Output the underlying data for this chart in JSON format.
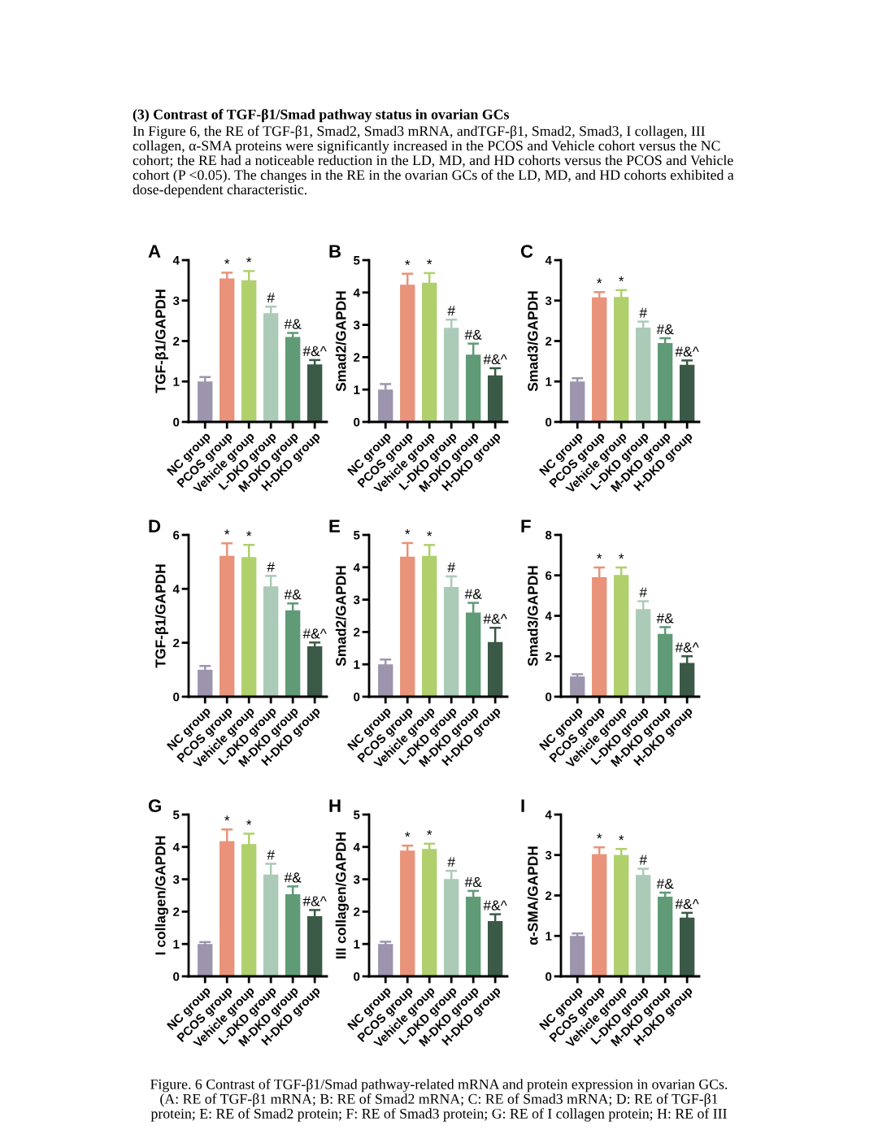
{
  "chart_data": [
    {
      "type": "other",
      "title": "(3) Contrast of TGF-β1/Smad pathway status in ovarian GCs",
      "annotations": [
        "In Figure 6, the RE of TGF-β1, Smad2, Smad3 mRNA, andTGF-β1, Smad2, Smad3, I collagen, III collagen, α-SMA proteins were significantly increased in the PCOS and Vehicle cohort versus the NC cohort; the RE had a noticeable reduction in the LD, MD, and HD cohorts versus the PCOS and Vehicle cohort (P <0.05). The changes in the RE in the ovarian GCs of the LD, MD, and HD cohorts exhibited a dose-dependent characteristic."
      ]
    },
    {
      "type": "bar",
      "title": "A",
      "ylabel": "TGF-β1/GAPDH",
      "categories": [
        "NC group",
        "PCOS group",
        "Vehicle group",
        "L-DKD group",
        "M-DKD group",
        "H-DKD group"
      ],
      "values": [
        1.0,
        3.55,
        3.5,
        2.69,
        2.1,
        1.42
      ],
      "errors": [
        0.11,
        0.14,
        0.23,
        0.16,
        0.1,
        0.11
      ],
      "colors": [
        "#9d95ad",
        "#e8937a",
        "#afd06c",
        "#abcbb8",
        "#5f9b77",
        "#3a5a47"
      ],
      "ylim": [
        0,
        4
      ],
      "yticks": [
        0,
        1,
        2,
        3,
        4
      ],
      "annotations": [
        {
          "text": "*",
          "x": "PCOS group",
          "y": 3.69
        },
        {
          "text": "*",
          "x": "Vehicle group",
          "y": 3.73
        },
        {
          "text": "#",
          "x": "L-DKD group",
          "y": 2.85
        },
        {
          "text": "#&",
          "x": "M-DKD group",
          "y": 2.2
        },
        {
          "text": "#&^",
          "x": "H-DKD group",
          "y": 1.53
        }
      ]
    },
    {
      "type": "bar",
      "title": "B",
      "ylabel": "Smad2/GAPDH",
      "categories": [
        "NC group",
        "PCOS group",
        "Vehicle group",
        "L-DKD group",
        "M-DKD group",
        "H-DKD group"
      ],
      "values": [
        1.0,
        4.24,
        4.3,
        2.91,
        2.08,
        1.44
      ],
      "errors": [
        0.17,
        0.34,
        0.3,
        0.25,
        0.34,
        0.22
      ],
      "colors": [
        "#9d95ad",
        "#e8937a",
        "#afd06c",
        "#abcbb8",
        "#5f9b77",
        "#3a5a47"
      ],
      "ylim": [
        0,
        5
      ],
      "yticks": [
        0,
        1,
        2,
        3,
        4,
        5
      ],
      "annotations": [
        {
          "text": "*",
          "x": "PCOS group",
          "y": 4.58
        },
        {
          "text": "*",
          "x": "Vehicle group",
          "y": 4.6
        },
        {
          "text": "#",
          "x": "L-DKD group",
          "y": 3.16
        },
        {
          "text": "#&",
          "x": "M-DKD group",
          "y": 2.42
        },
        {
          "text": "#&^",
          "x": "H-DKD group",
          "y": 1.66
        }
      ]
    },
    {
      "type": "bar",
      "title": "C",
      "ylabel": "Smad3/GAPDH",
      "categories": [
        "NC group",
        "PCOS group",
        "Vehicle group",
        "L-DKD group",
        "M-DKD group",
        "H-DKD group"
      ],
      "values": [
        1.0,
        3.08,
        3.09,
        2.33,
        1.95,
        1.41
      ],
      "errors": [
        0.08,
        0.13,
        0.17,
        0.15,
        0.12,
        0.11
      ],
      "colors": [
        "#9d95ad",
        "#e8937a",
        "#afd06c",
        "#abcbb8",
        "#5f9b77",
        "#3a5a47"
      ],
      "ylim": [
        0,
        4
      ],
      "yticks": [
        0,
        1,
        2,
        3,
        4
      ],
      "annotations": [
        {
          "text": "*",
          "x": "PCOS group",
          "y": 3.21
        },
        {
          "text": "*",
          "x": "Vehicle group",
          "y": 3.26
        },
        {
          "text": "#",
          "x": "L-DKD group",
          "y": 2.48
        },
        {
          "text": "#&",
          "x": "M-DKD group",
          "y": 2.07
        },
        {
          "text": "#&^",
          "x": "H-DKD group",
          "y": 1.52
        }
      ]
    },
    {
      "type": "bar",
      "title": "D",
      "ylabel": "TGF-β1/GAPDH",
      "categories": [
        "NC group",
        "PCOS group",
        "Vehicle group",
        "L-DKD group",
        "M-DKD group",
        "H-DKD group"
      ],
      "values": [
        1.0,
        5.22,
        5.18,
        4.09,
        3.2,
        1.87
      ],
      "errors": [
        0.14,
        0.47,
        0.45,
        0.39,
        0.26,
        0.14
      ],
      "colors": [
        "#9d95ad",
        "#e8937a",
        "#afd06c",
        "#abcbb8",
        "#5f9b77",
        "#3a5a47"
      ],
      "ylim": [
        0,
        6
      ],
      "yticks": [
        0,
        2,
        4,
        6
      ],
      "annotations": [
        {
          "text": "*",
          "x": "PCOS group",
          "y": 5.69
        },
        {
          "text": "*",
          "x": "Vehicle group",
          "y": 5.63
        },
        {
          "text": "#",
          "x": "L-DKD group",
          "y": 4.48
        },
        {
          "text": "#&",
          "x": "M-DKD group",
          "y": 3.46
        },
        {
          "text": "#&^",
          "x": "H-DKD group",
          "y": 2.01
        }
      ]
    },
    {
      "type": "bar",
      "title": "E",
      "ylabel": "Smad2/GAPDH",
      "categories": [
        "NC group",
        "PCOS group",
        "Vehicle group",
        "L-DKD group",
        "M-DKD group",
        "H-DKD group"
      ],
      "values": [
        1.0,
        4.33,
        4.35,
        3.39,
        2.6,
        1.69
      ],
      "errors": [
        0.15,
        0.42,
        0.34,
        0.33,
        0.3,
        0.44
      ],
      "colors": [
        "#9d95ad",
        "#e8937a",
        "#afd06c",
        "#abcbb8",
        "#5f9b77",
        "#3a5a47"
      ],
      "ylim": [
        0,
        5
      ],
      "yticks": [
        0,
        1,
        2,
        3,
        4,
        5
      ],
      "annotations": [
        {
          "text": "*",
          "x": "PCOS group",
          "y": 4.75
        },
        {
          "text": "*",
          "x": "Vehicle group",
          "y": 4.69
        },
        {
          "text": "#",
          "x": "L-DKD group",
          "y": 3.72
        },
        {
          "text": "#&",
          "x": "M-DKD group",
          "y": 2.9
        },
        {
          "text": "#&^",
          "x": "H-DKD group",
          "y": 2.13
        }
      ]
    },
    {
      "type": "bar",
      "title": "F",
      "ylabel": "Smad3/GAPDH",
      "categories": [
        "NC group",
        "PCOS group",
        "Vehicle group",
        "L-DKD group",
        "M-DKD group",
        "H-DKD group"
      ],
      "values": [
        1.0,
        5.91,
        6.02,
        4.33,
        3.11,
        1.67
      ],
      "errors": [
        0.11,
        0.48,
        0.37,
        0.39,
        0.33,
        0.33
      ],
      "colors": [
        "#9d95ad",
        "#e8937a",
        "#afd06c",
        "#abcbb8",
        "#5f9b77",
        "#3a5a47"
      ],
      "ylim": [
        0,
        8
      ],
      "yticks": [
        0,
        2,
        4,
        6,
        8
      ],
      "annotations": [
        {
          "text": "*",
          "x": "PCOS group",
          "y": 6.39
        },
        {
          "text": "*",
          "x": "Vehicle group",
          "y": 6.39
        },
        {
          "text": "#",
          "x": "L-DKD group",
          "y": 4.72
        },
        {
          "text": "#&",
          "x": "M-DKD group",
          "y": 3.44
        },
        {
          "text": "#&^",
          "x": "H-DKD group",
          "y": 2.0
        }
      ]
    },
    {
      "type": "bar",
      "title": "G",
      "ylabel": "I collagen/GAPDH",
      "categories": [
        "NC group",
        "PCOS group",
        "Vehicle group",
        "L-DKD group",
        "M-DKD group",
        "H-DKD group"
      ],
      "values": [
        1.0,
        4.18,
        4.09,
        3.15,
        2.54,
        1.86
      ],
      "errors": [
        0.06,
        0.36,
        0.32,
        0.33,
        0.24,
        0.19
      ],
      "colors": [
        "#9d95ad",
        "#e8937a",
        "#afd06c",
        "#abcbb8",
        "#5f9b77",
        "#3a5a47"
      ],
      "ylim": [
        0,
        5
      ],
      "yticks": [
        0,
        1,
        2,
        3,
        4,
        5
      ],
      "annotations": [
        {
          "text": "*",
          "x": "PCOS group",
          "y": 4.54
        },
        {
          "text": "*",
          "x": "Vehicle group",
          "y": 4.41
        },
        {
          "text": "#",
          "x": "L-DKD group",
          "y": 3.48
        },
        {
          "text": "#&",
          "x": "M-DKD group",
          "y": 2.78
        },
        {
          "text": "#&^",
          "x": "H-DKD group",
          "y": 2.05
        }
      ]
    },
    {
      "type": "bar",
      "title": "H",
      "ylabel": "III collagen/GAPDH",
      "categories": [
        "NC group",
        "PCOS group",
        "Vehicle group",
        "L-DKD group",
        "M-DKD group",
        "H-DKD group"
      ],
      "values": [
        1.0,
        3.89,
        3.94,
        3.01,
        2.46,
        1.71
      ],
      "errors": [
        0.07,
        0.15,
        0.16,
        0.25,
        0.18,
        0.21
      ],
      "colors": [
        "#9d95ad",
        "#e8937a",
        "#afd06c",
        "#abcbb8",
        "#5f9b77",
        "#3a5a47"
      ],
      "ylim": [
        0,
        5
      ],
      "yticks": [
        0,
        1,
        2,
        3,
        4,
        5
      ],
      "annotations": [
        {
          "text": "*",
          "x": "PCOS group",
          "y": 4.04
        },
        {
          "text": "*",
          "x": "Vehicle group",
          "y": 4.1
        },
        {
          "text": "#",
          "x": "L-DKD group",
          "y": 3.26
        },
        {
          "text": "#&",
          "x": "M-DKD group",
          "y": 2.64
        },
        {
          "text": "#&^",
          "x": "H-DKD group",
          "y": 1.92
        }
      ]
    },
    {
      "type": "bar",
      "title": "I",
      "ylabel": "α-SMA/GAPDH",
      "categories": [
        "NC group",
        "PCOS group",
        "Vehicle group",
        "L-DKD group",
        "M-DKD group",
        "H-DKD group"
      ],
      "values": [
        1.0,
        3.02,
        3.0,
        2.51,
        1.97,
        1.45
      ],
      "errors": [
        0.06,
        0.17,
        0.15,
        0.15,
        0.1,
        0.12
      ],
      "colors": [
        "#9d95ad",
        "#e8937a",
        "#afd06c",
        "#abcbb8",
        "#5f9b77",
        "#3a5a47"
      ],
      "ylim": [
        0,
        4
      ],
      "yticks": [
        0,
        1,
        2,
        3,
        4
      ],
      "annotations": [
        {
          "text": "*",
          "x": "PCOS group",
          "y": 3.19
        },
        {
          "text": "*",
          "x": "Vehicle group",
          "y": 3.15
        },
        {
          "text": "#",
          "x": "L-DKD group",
          "y": 2.66
        },
        {
          "text": "#&",
          "x": "M-DKD group",
          "y": 2.07
        },
        {
          "text": "#&^",
          "x": "H-DKD group",
          "y": 1.57
        }
      ]
    },
    {
      "type": "other",
      "annotations": [
        "Figure. 6 Contrast of TGF-β1/Smad pathway-related mRNA and protein expression in ovarian GCs. (A: RE of TGF-β1 mRNA; B: RE of Smad2 mRNA; C: RE of Smad3 mRNA; D: RE of TGF-β1 protein; E: RE of Smad2 protein; F: RE of Smad3 protein; G: RE of I collagen protein; H: RE of III"
      ]
    }
  ]
}
